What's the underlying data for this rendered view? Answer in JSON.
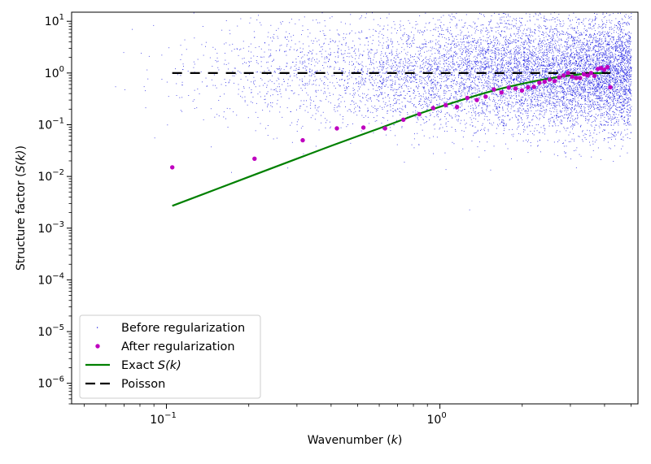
{
  "chart_data": {
    "type": "scatter",
    "xscale": "log",
    "yscale": "log",
    "xlim": [
      0.045,
      5.3
    ],
    "ylim": [
      4e-07,
      15.0
    ],
    "xlabel_prefix": "Wavenumber (",
    "xlabel_var": "k",
    "xlabel_suffix": ")",
    "ylabel_prefix": "Structure factor (",
    "ylabel_var": "S(k)",
    "ylabel_suffix": ")",
    "x_ticks": [
      {
        "value": 0.1,
        "base": "10",
        "exp": "−1"
      },
      {
        "value": 1.0,
        "base": "10",
        "exp": "0"
      }
    ],
    "y_ticks": [
      {
        "value": 1e-06,
        "base": "10",
        "exp": "−6"
      },
      {
        "value": 1e-05,
        "base": "10",
        "exp": "−5"
      },
      {
        "value": 0.0001,
        "base": "10",
        "exp": "−4"
      },
      {
        "value": 0.001,
        "base": "10",
        "exp": "−3"
      },
      {
        "value": 0.01,
        "base": "10",
        "exp": "−2"
      },
      {
        "value": 0.1,
        "base": "10",
        "exp": "−1"
      },
      {
        "value": 1,
        "base": "10",
        "exp": "0"
      },
      {
        "value": 10,
        "base": "10",
        "exp": "1"
      }
    ],
    "legend": {
      "placement": "lower-left",
      "entries": [
        {
          "label": "Before regularization",
          "marker": "tiny-dot",
          "color": "#1010e0"
        },
        {
          "label": "After regularization",
          "marker": "dot",
          "color": "#bf00bf"
        },
        {
          "label_prefix": "Exact ",
          "label_var": "S(k)",
          "label_suffix": "",
          "marker": "line",
          "color": "#008000"
        },
        {
          "label": "Poisson",
          "marker": "dashed",
          "color": "#000000"
        }
      ]
    },
    "series": [
      {
        "name": "After regularization",
        "color": "#bf00bf",
        "points": [
          [
            0.105,
            0.015
          ],
          [
            0.21,
            0.022
          ],
          [
            0.315,
            0.05
          ],
          [
            0.42,
            0.085
          ],
          [
            0.525,
            0.088
          ],
          [
            0.63,
            0.085
          ],
          [
            0.735,
            0.125
          ],
          [
            0.84,
            0.16
          ],
          [
            0.945,
            0.21
          ],
          [
            1.05,
            0.24
          ],
          [
            1.155,
            0.22
          ],
          [
            1.26,
            0.33
          ],
          [
            1.365,
            0.3
          ],
          [
            1.47,
            0.35
          ],
          [
            1.575,
            0.48
          ],
          [
            1.68,
            0.42
          ],
          [
            1.785,
            0.52
          ],
          [
            1.89,
            0.5
          ],
          [
            1.995,
            0.46
          ],
          [
            2.1,
            0.53
          ],
          [
            2.205,
            0.54
          ],
          [
            2.31,
            0.65
          ],
          [
            2.415,
            0.68
          ],
          [
            2.52,
            0.75
          ],
          [
            2.625,
            0.7
          ],
          [
            2.73,
            0.82
          ],
          [
            2.835,
            0.9
          ],
          [
            2.94,
            1.0
          ],
          [
            3.045,
            0.85
          ],
          [
            3.15,
            0.8
          ],
          [
            3.255,
            0.8
          ],
          [
            3.36,
            0.95
          ],
          [
            3.465,
            0.9
          ],
          [
            3.57,
            1.0
          ],
          [
            3.675,
            0.88
          ],
          [
            3.78,
            1.2
          ],
          [
            3.885,
            1.25
          ],
          [
            3.99,
            1.15
          ],
          [
            4.095,
            1.3
          ],
          [
            4.2,
            0.53
          ]
        ]
      },
      {
        "name": "Exact S(k)",
        "color": "#008000",
        "points": [
          [
            0.105,
            0.0027
          ],
          [
            0.15,
            0.0055
          ],
          [
            0.2,
            0.0098
          ],
          [
            0.3,
            0.022
          ],
          [
            0.4,
            0.039
          ],
          [
            0.5,
            0.06
          ],
          [
            0.6,
            0.085
          ],
          [
            0.7,
            0.115
          ],
          [
            0.8,
            0.15
          ],
          [
            0.9,
            0.185
          ],
          [
            1.0,
            0.222
          ],
          [
            1.2,
            0.3
          ],
          [
            1.4,
            0.385
          ],
          [
            1.6,
            0.47
          ],
          [
            1.8,
            0.55
          ],
          [
            2.0,
            0.62
          ],
          [
            2.2,
            0.69
          ],
          [
            2.4,
            0.75
          ],
          [
            2.6,
            0.81
          ],
          [
            2.8,
            0.86
          ],
          [
            3.0,
            0.9
          ],
          [
            3.2,
            0.94
          ],
          [
            3.4,
            0.97
          ],
          [
            3.6,
            0.985
          ],
          [
            3.8,
            0.995
          ],
          [
            4.0,
            1.0
          ],
          [
            4.2,
            1.0
          ]
        ]
      },
      {
        "name": "Poisson",
        "color": "#000000",
        "points": [
          [
            0.105,
            1.0
          ],
          [
            4.2,
            1.0
          ]
        ]
      }
    ],
    "before_regularization": {
      "color": "#1010e0",
      "count": 9000,
      "k_range": [
        0.045,
        5.0
      ],
      "center_value": 1.0,
      "note": "dense cloud of tiny blue points concentrated toward large k"
    }
  }
}
